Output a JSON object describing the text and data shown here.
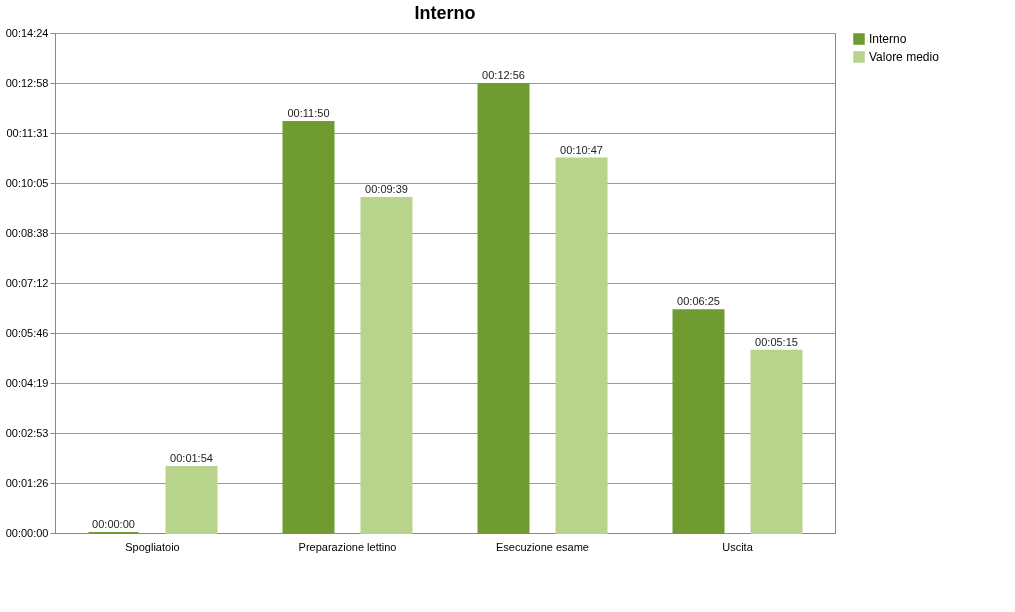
{
  "chart_data": {
    "type": "bar",
    "title": "Interno",
    "categories": [
      "Spogliatoio",
      "Preparazione lettino",
      "Esecuzione esame",
      "Uscita"
    ],
    "series": [
      {
        "name": "Interno",
        "color": "#6f9b30",
        "values": [
          0,
          710,
          776,
          385
        ],
        "value_labels": [
          "00:00:00",
          "00:11:50",
          "00:12:56",
          "00:06:25"
        ]
      },
      {
        "name": "Valore medio",
        "color": "#b8d38c",
        "values": [
          114,
          579,
          647,
          315
        ],
        "value_labels": [
          "00:01:54",
          "00:09:39",
          "00:10:47",
          "00:05:15"
        ]
      }
    ],
    "ylim": [
      0,
      864
    ],
    "yticks": [
      {
        "value": 0,
        "label": "00:00:00"
      },
      {
        "value": 86.4,
        "label": "00:01:26"
      },
      {
        "value": 172.8,
        "label": "00:02:53"
      },
      {
        "value": 259.2,
        "label": "00:04:19"
      },
      {
        "value": 345.6,
        "label": "00:05:46"
      },
      {
        "value": 432,
        "label": "00:07:12"
      },
      {
        "value": 518.4,
        "label": "00:08:38"
      },
      {
        "value": 604.8,
        "label": "00:10:05"
      },
      {
        "value": 691.2,
        "label": "00:11:31"
      },
      {
        "value": 777.6,
        "label": "00:12:58"
      },
      {
        "value": 864,
        "label": "00:14:24"
      }
    ],
    "grid": "y",
    "legend": "right"
  }
}
